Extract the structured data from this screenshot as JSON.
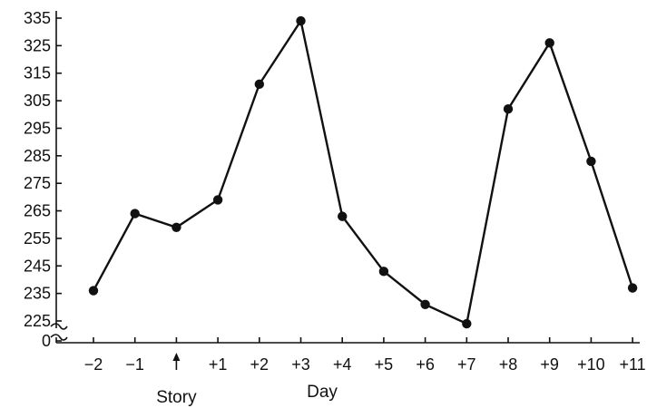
{
  "chart_data": {
    "type": "line",
    "title": "",
    "xlabel": "Day",
    "ylabel": "",
    "categories": [
      "−2",
      "−1",
      "",
      "+1",
      "+2",
      "+3",
      "+4",
      "+5",
      "+6",
      "+7",
      "+8",
      "+9",
      "+10",
      "+11"
    ],
    "series": [
      {
        "values": [
          236,
          264,
          259,
          269,
          311,
          334,
          263,
          243,
          231,
          224,
          302,
          326,
          283,
          237
        ]
      }
    ],
    "yticks": [
      0,
      225,
      235,
      245,
      255,
      265,
      275,
      285,
      295,
      305,
      315,
      325,
      335
    ],
    "ylim": [
      225,
      335
    ],
    "y_axis_break": true,
    "grid": false,
    "annotations": [
      {
        "text": "Story",
        "at_category_index": 2,
        "marker": "arrow-up"
      }
    ]
  }
}
